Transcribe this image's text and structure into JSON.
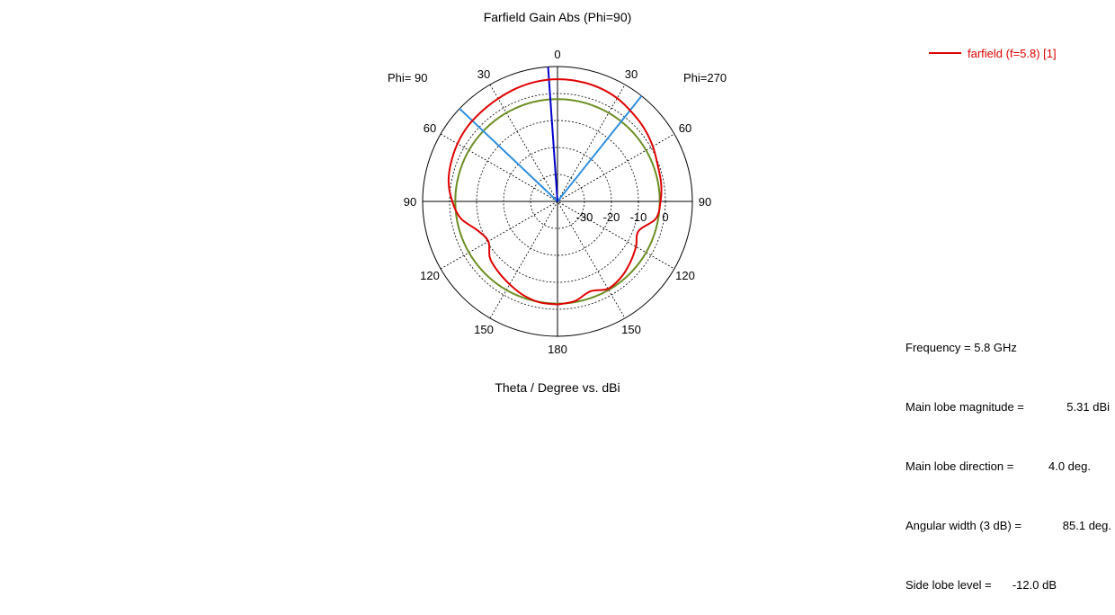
{
  "chart_data": {
    "type": "polar-line",
    "title": "Farfield Gain Abs (Phi=90)",
    "xlabel": "Theta / Degree vs. dBi",
    "left_half_label": "Phi= 90",
    "right_half_label": "Phi=270",
    "angle_ticks": [
      {
        "text": "0",
        "angle": 0
      },
      {
        "text": "30",
        "angle": -30
      },
      {
        "text": "30",
        "angle": 30
      },
      {
        "text": "60",
        "angle": -60
      },
      {
        "text": "60",
        "angle": 60
      },
      {
        "text": "90",
        "angle": -90
      },
      {
        "text": "90",
        "angle": 90
      },
      {
        "text": "120",
        "angle": -120
      },
      {
        "text": "120",
        "angle": 120
      },
      {
        "text": "150",
        "angle": -150
      },
      {
        "text": "150",
        "angle": 150
      },
      {
        "text": "180",
        "angle": 180
      }
    ],
    "radial_ticks": [
      "-30",
      "-20",
      "-10",
      "0"
    ],
    "rlim": [
      -40,
      10
    ],
    "dashed_rings_db": [
      -30,
      -20,
      -10,
      0
    ],
    "series": [
      {
        "name": "farfield (f=5.8) [1]",
        "color": "#e00000",
        "theta": [
          -180,
          -170,
          -160,
          -150,
          -140,
          -130,
          -120,
          -110,
          -100,
          -90,
          -80,
          -70,
          -60,
          -50,
          -40,
          -30,
          -20,
          -10,
          0,
          10,
          20,
          30,
          40,
          50,
          60,
          70,
          80,
          90,
          100,
          110,
          120,
          130,
          140,
          150,
          160,
          170,
          180
        ],
        "gain_dbi": [
          -1.8,
          -2.5,
          -4.5,
          -2.6,
          -3.3,
          -4.8,
          -6.4,
          -8.0,
          -3.0,
          -1.8,
          -1.0,
          -0.5,
          0.8,
          2.0,
          3.0,
          4.2,
          4.9,
          5.2,
          5.31,
          5.1,
          4.6,
          4.0,
          3.6,
          3.4,
          2.8,
          2.0,
          1.0,
          -1.0,
          -3.6,
          -8.5,
          -10.4,
          -7.3,
          -5.9,
          -4.5,
          -3.0,
          -2.0,
          -1.8
        ]
      }
    ],
    "main_lobe_direction_deg": 4.0,
    "angular_width_3db_deg": 85.1,
    "reference_circle_db": -2.1
  },
  "legend": {
    "label": "farfield (f=5.8) [1]",
    "color": "#e00000"
  },
  "info": [
    {
      "label": "Frequency = 5.8 GHz",
      "value": ""
    },
    {
      "label": "Main lobe magnitude =",
      "value": "5.31 dBi"
    },
    {
      "label": "Main lobe direction =",
      "value": "4.0 deg."
    },
    {
      "label": "Angular width (3 dB) =",
      "value": "85.1 deg."
    },
    {
      "label": "Side lobe level =",
      "value": "-12.0 dB"
    }
  ],
  "colors": {
    "main_lobe_line": "#0000cc",
    "beamwidth_lines": "#2f8fdf",
    "reference_circle": "#6b8e23",
    "grid": "#000000"
  }
}
